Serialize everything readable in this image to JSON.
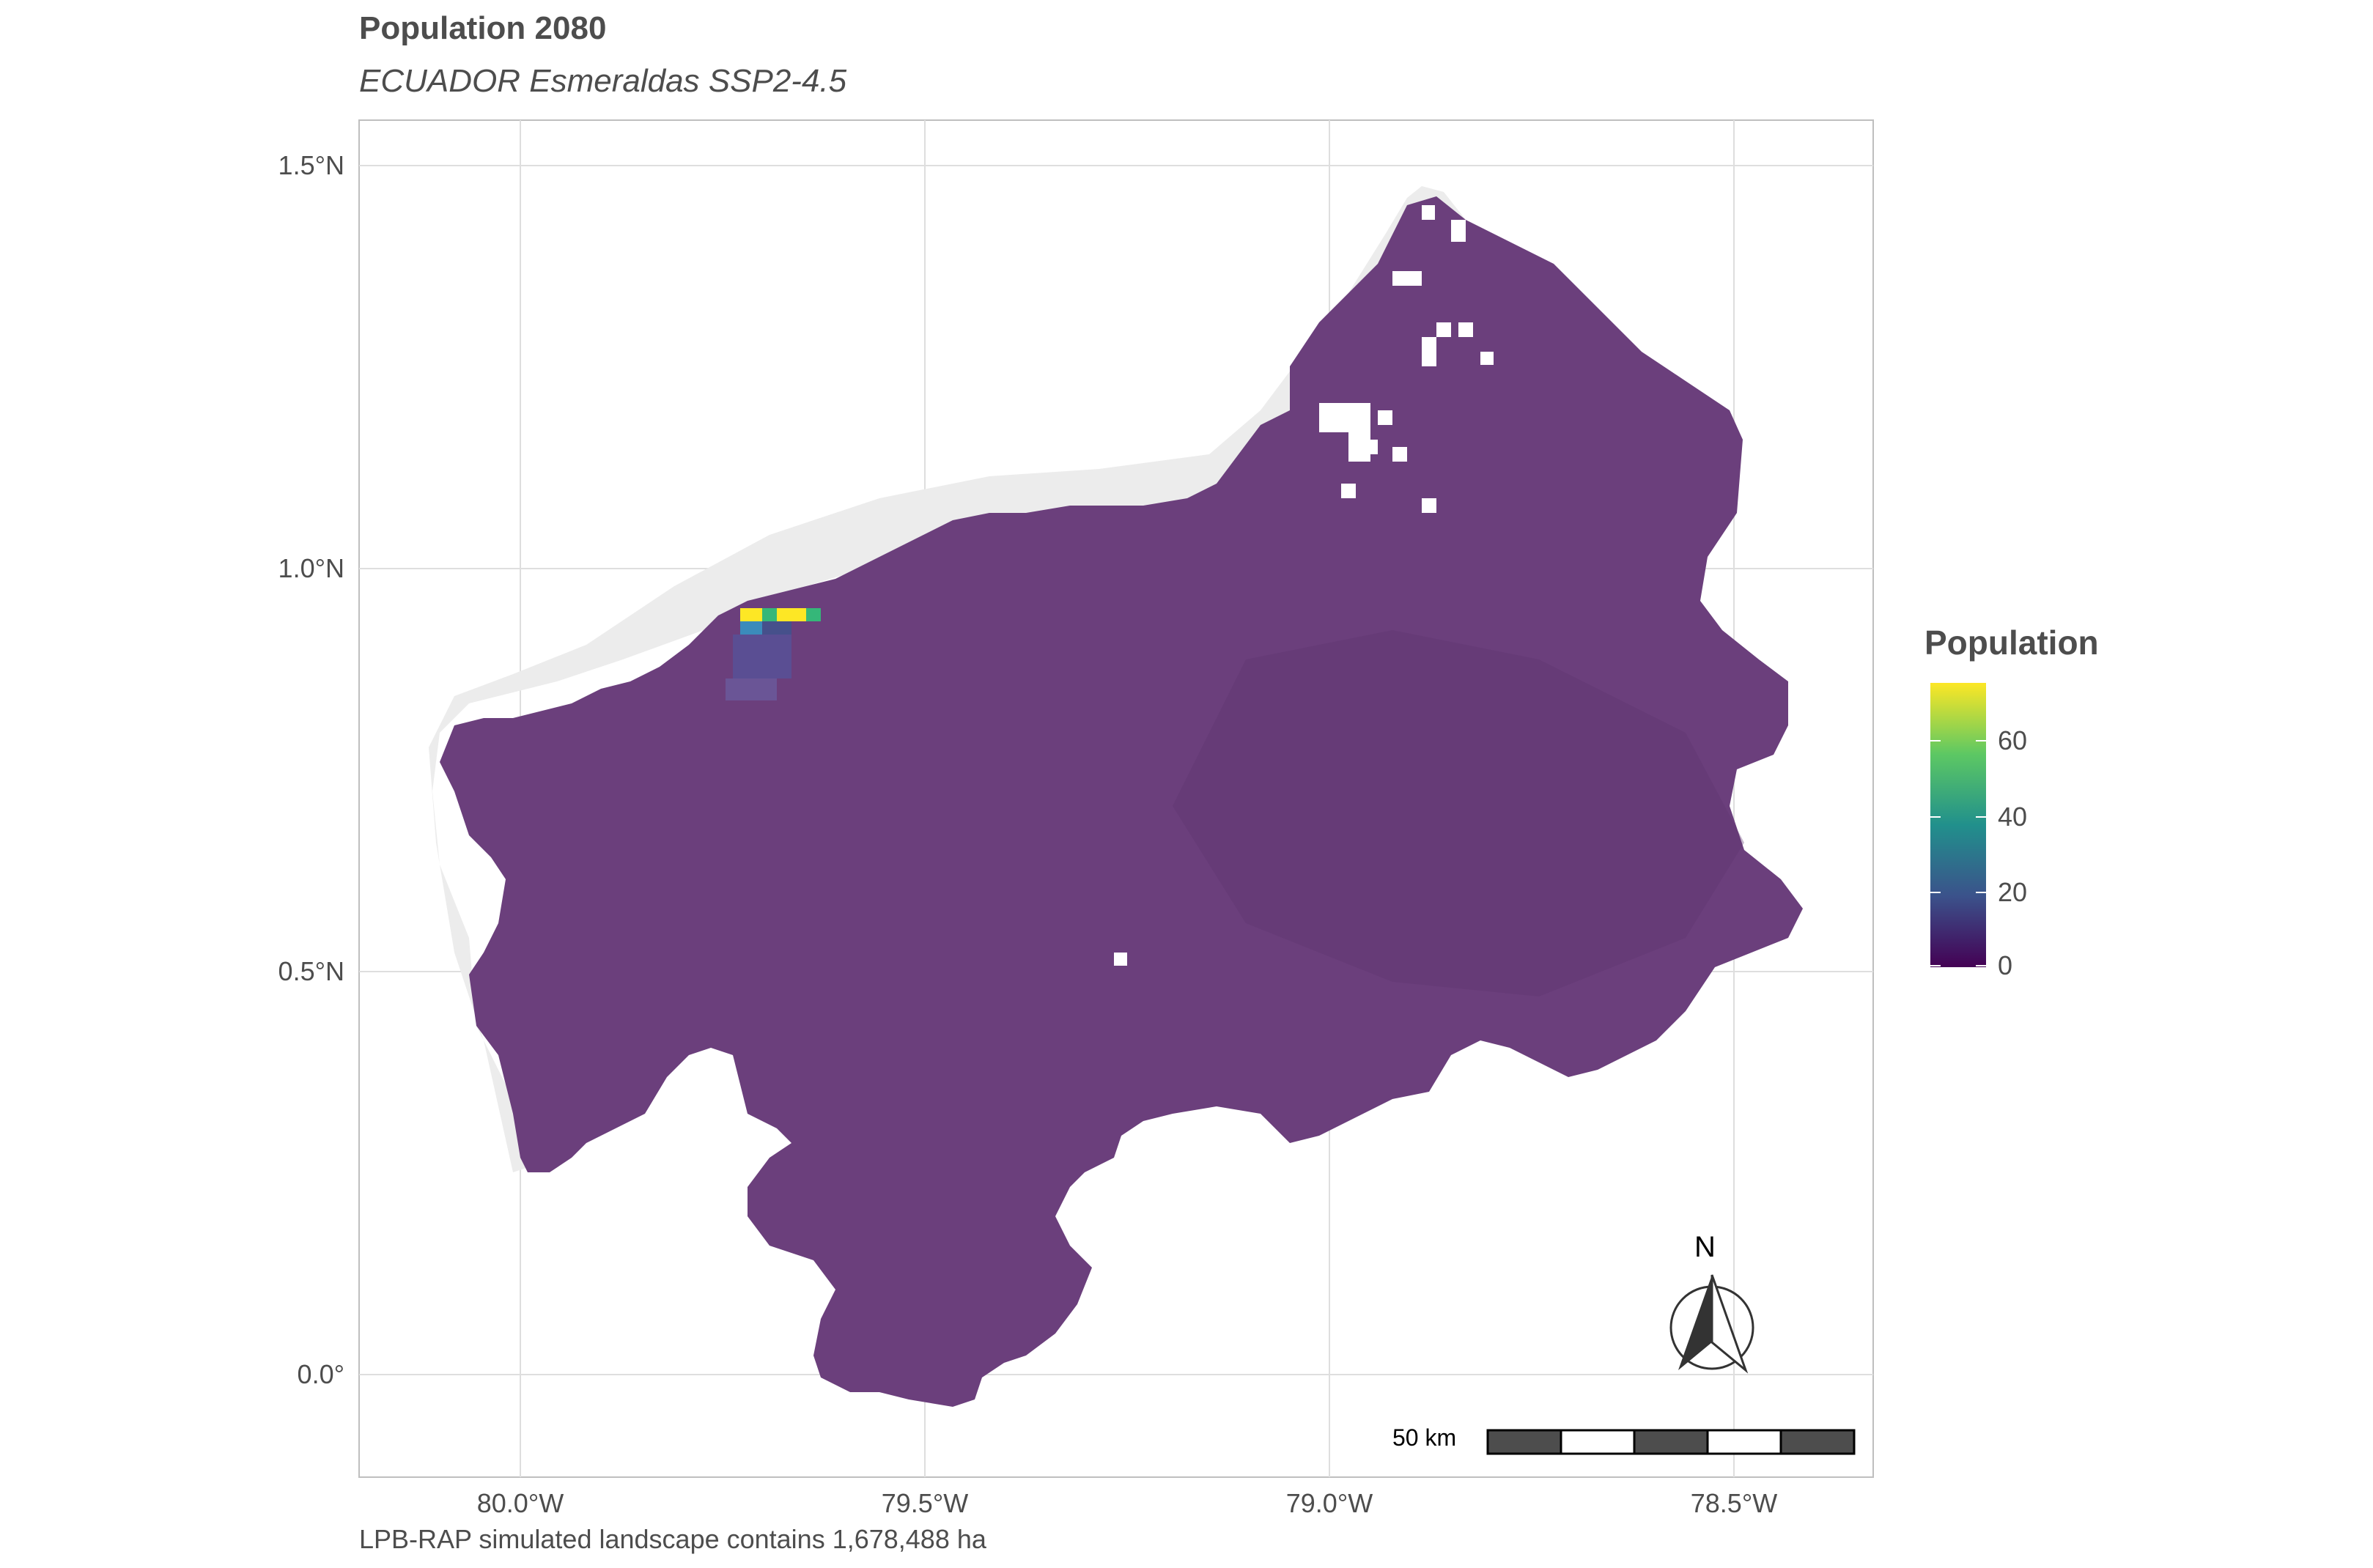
{
  "title": "Population 2080",
  "subtitle": "ECUADOR Esmeraldas SSP2-4.5",
  "caption": "LPB-RAP simulated landscape contains 1,678,488 ha",
  "axes": {
    "x_ticks": [
      "80.0°W",
      "79.5°W",
      "79.0°W",
      "78.5°W"
    ],
    "y_ticks": [
      "1.5°N",
      "1.0°N",
      "0.5°N",
      "0.0°"
    ]
  },
  "legend": {
    "title": "Population",
    "labels": [
      "60",
      "40",
      "20",
      "0"
    ],
    "range": [
      0,
      78
    ],
    "colormap": "viridis"
  },
  "scale_bar": {
    "label": "50 km"
  },
  "north_arrow": {
    "label": "N",
    "icon": "north-arrow-icon"
  },
  "colors": {
    "region_fill": "#6b3f7c",
    "coast_buffer": "#ececec",
    "grid": "#dedede",
    "panel_border": "#bfbfbf",
    "hotspot_high": "#fde725",
    "hotspot_mid": "#35b779",
    "hotspot_low": "#3b528b"
  }
}
